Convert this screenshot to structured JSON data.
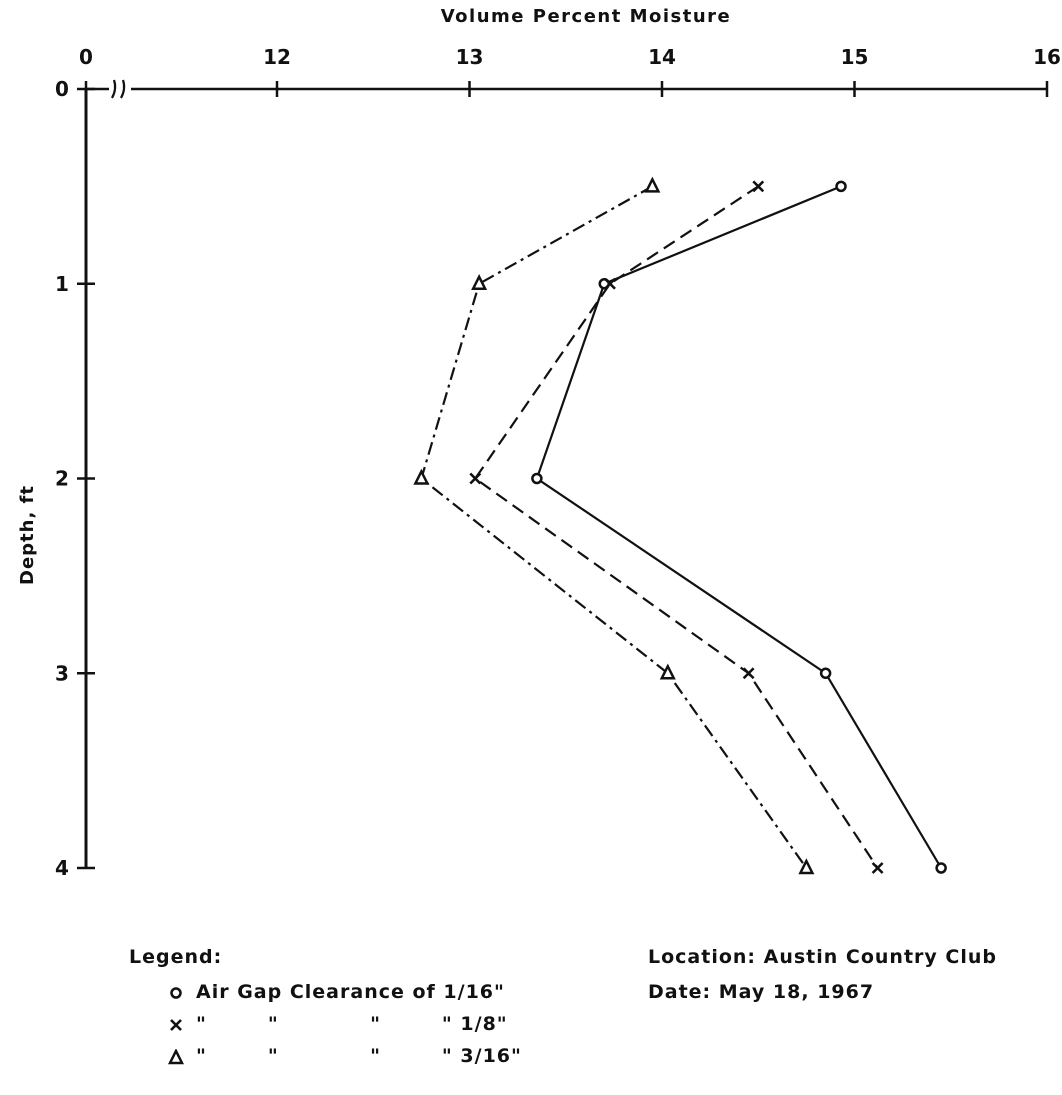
{
  "chart_data": {
    "type": "line",
    "title": "",
    "xlabel": "Volume Percent Moisture",
    "ylabel": "Depth, ft",
    "x_axis_position": "top",
    "y_inverted": true,
    "x_break": true,
    "x_ticks": [
      "0",
      "12",
      "13",
      "14",
      "15",
      "16"
    ],
    "x_tick_values": [
      11,
      12,
      13,
      14,
      15,
      16
    ],
    "y_ticks": [
      "0",
      "1",
      "2",
      "3",
      "4"
    ],
    "y_tick_values": [
      0,
      1,
      2,
      3,
      4
    ],
    "xlim": [
      11,
      16
    ],
    "ylim": [
      0,
      4
    ],
    "grid": false,
    "series": [
      {
        "name": "Air Gap Clearance of 1/16\"",
        "marker": "circle",
        "line": "solid",
        "points": [
          {
            "x": 14.93,
            "y": 0.5
          },
          {
            "x": 13.7,
            "y": 1.0
          },
          {
            "x": 13.35,
            "y": 2.0
          },
          {
            "x": 14.85,
            "y": 3.0
          },
          {
            "x": 15.45,
            "y": 4.0
          }
        ]
      },
      {
        "name": "1/8\"",
        "marker": "x",
        "line": "dashed",
        "points": [
          {
            "x": 14.5,
            "y": 0.5
          },
          {
            "x": 13.73,
            "y": 1.0
          },
          {
            "x": 13.03,
            "y": 2.0
          },
          {
            "x": 14.45,
            "y": 3.0
          },
          {
            "x": 15.12,
            "y": 4.0
          }
        ]
      },
      {
        "name": "3/16\"",
        "marker": "triangle",
        "line": "dashdot",
        "points": [
          {
            "x": 13.95,
            "y": 0.5
          },
          {
            "x": 13.05,
            "y": 1.0
          },
          {
            "x": 12.75,
            "y": 2.0
          },
          {
            "x": 14.03,
            "y": 3.0
          },
          {
            "x": 14.75,
            "y": 4.0
          }
        ]
      }
    ]
  },
  "legend": {
    "title": "Legend:",
    "rows": [
      {
        "marker": "circle",
        "text": "Air Gap Clearance of 1/16\""
      },
      {
        "marker": "x",
        "text": "\"        \"            \"        \" 1/8\""
      },
      {
        "marker": "triangle",
        "text": "\"        \"            \"        \" 3/16\""
      }
    ]
  },
  "info": {
    "location": "Location: Austin Country Club",
    "date": "Date: May 18, 1967"
  }
}
